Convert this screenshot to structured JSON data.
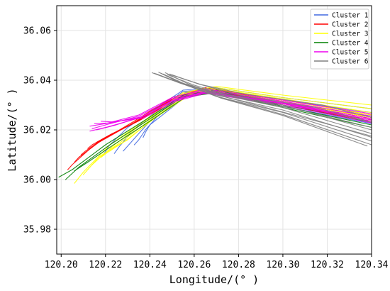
{
  "chart_data": {
    "type": "line",
    "title": "",
    "xlabel": "Longitude/(° )",
    "ylabel": "Latitude/(° )",
    "xlim": [
      120.198,
      120.34
    ],
    "ylim": [
      35.97,
      36.07
    ],
    "x_ticks": [
      "120.20",
      "120.22",
      "120.24",
      "120.26",
      "120.28",
      "120.30",
      "120.32",
      "120.34"
    ],
    "x_tick_values": [
      120.2,
      120.22,
      120.24,
      120.26,
      120.28,
      120.3,
      120.32,
      120.34
    ],
    "y_ticks": [
      "35.98",
      "36.00",
      "36.02",
      "36.04",
      "36.06"
    ],
    "y_tick_values": [
      35.98,
      36.0,
      36.02,
      36.04,
      36.06
    ],
    "grid": true,
    "legend_position": "top-right",
    "series": [
      {
        "name": "Cluster 1",
        "color": "#4169e1",
        "paths": [
          [
            [
              120.34,
              36.0285
            ],
            [
              120.3,
              36.033
            ],
            [
              120.27,
              36.037
            ],
            [
              120.255,
              36.036
            ],
            [
              120.24,
              36.027
            ],
            [
              120.23,
              36.021
            ],
            [
              120.222,
              36.014
            ],
            [
              120.219,
              36.01
            ]
          ],
          [
            [
              120.34,
              36.027
            ],
            [
              120.3,
              36.032
            ],
            [
              120.27,
              36.0365
            ],
            [
              120.255,
              36.0355
            ],
            [
              120.241,
              36.0262
            ],
            [
              120.232,
              36.0195
            ],
            [
              120.226,
              36.013
            ],
            [
              120.224,
              36.0105
            ]
          ],
          [
            [
              120.34,
              36.0255
            ],
            [
              120.3,
              36.031
            ],
            [
              120.27,
              36.036
            ],
            [
              120.256,
              36.035
            ],
            [
              120.242,
              36.0255
            ],
            [
              120.235,
              36.0185
            ],
            [
              120.23,
              36.0135
            ],
            [
              120.228,
              36.0115
            ]
          ],
          [
            [
              120.34,
              36.024
            ],
            [
              120.3,
              36.03
            ],
            [
              120.27,
              36.0355
            ],
            [
              120.256,
              36.0345
            ],
            [
              120.243,
              36.025
            ],
            [
              120.238,
              36.02
            ],
            [
              120.235,
              36.016
            ],
            [
              120.233,
              36.014
            ]
          ],
          [
            [
              120.34,
              36.0225
            ],
            [
              120.3,
              36.0295
            ],
            [
              120.27,
              36.035
            ],
            [
              120.257,
              36.034
            ],
            [
              120.244,
              36.0248
            ],
            [
              120.24,
              36.022
            ],
            [
              120.238,
              36.019
            ],
            [
              120.237,
              36.017
            ]
          ]
        ]
      },
      {
        "name": "Cluster 2",
        "color": "#ff0000",
        "paths": [
          [
            [
              120.34,
              36.026
            ],
            [
              120.3,
              36.032
            ],
            [
              120.265,
              36.037
            ],
            [
              120.25,
              36.033
            ],
            [
              120.232,
              36.023
            ],
            [
              120.215,
              36.014
            ],
            [
              120.205,
              36.006
            ],
            [
              120.203,
              36.004
            ]
          ],
          [
            [
              120.34,
              36.025
            ],
            [
              120.3,
              36.0315
            ],
            [
              120.265,
              36.0365
            ],
            [
              120.25,
              36.0325
            ],
            [
              120.232,
              36.0225
            ],
            [
              120.217,
              36.015
            ],
            [
              120.208,
              36.009
            ],
            [
              120.206,
              36.007
            ]
          ],
          [
            [
              120.34,
              36.0245
            ],
            [
              120.3,
              36.031
            ],
            [
              120.265,
              36.036
            ],
            [
              120.25,
              36.0322
            ],
            [
              120.233,
              36.0228
            ],
            [
              120.219,
              36.0165
            ],
            [
              120.211,
              36.0115
            ],
            [
              120.209,
              36.01
            ]
          ],
          [
            [
              120.34,
              36.024
            ],
            [
              120.3,
              36.0305
            ],
            [
              120.265,
              36.0355
            ],
            [
              120.251,
              36.032
            ],
            [
              120.234,
              36.0232
            ],
            [
              120.221,
              36.0175
            ],
            [
              120.214,
              36.014
            ],
            [
              120.212,
              36.0125
            ]
          ],
          [
            [
              120.34,
              36.0235
            ],
            [
              120.3,
              36.03
            ],
            [
              120.265,
              36.0352
            ],
            [
              120.251,
              36.0318
            ],
            [
              120.235,
              36.0236
            ],
            [
              120.223,
              36.0185
            ],
            [
              120.218,
              36.016
            ],
            [
              120.216,
              36.015
            ]
          ]
        ]
      },
      {
        "name": "Cluster 3",
        "color": "#ffff00",
        "paths": [
          [
            [
              120.34,
              36.03
            ],
            [
              120.3,
              36.034
            ],
            [
              120.27,
              36.0375
            ],
            [
              120.255,
              36.035
            ],
            [
              120.238,
              36.024
            ],
            [
              120.222,
              36.014
            ],
            [
              120.21,
              36.003
            ],
            [
              120.206,
              35.9985
            ]
          ],
          [
            [
              120.34,
              36.0285
            ],
            [
              120.3,
              36.033
            ],
            [
              120.27,
              36.037
            ],
            [
              120.255,
              36.0345
            ],
            [
              120.238,
              36.0235
            ],
            [
              120.224,
              36.014
            ],
            [
              120.214,
              36.006
            ],
            [
              120.21,
              36.002
            ]
          ],
          [
            [
              120.34,
              36.027
            ],
            [
              120.3,
              36.0325
            ],
            [
              120.27,
              36.0365
            ],
            [
              120.256,
              36.0342
            ],
            [
              120.239,
              36.0232
            ],
            [
              120.226,
              36.0145
            ],
            [
              120.217,
              36.009
            ],
            [
              120.214,
              36.006
            ]
          ],
          [
            [
              120.34,
              36.026
            ],
            [
              120.3,
              36.032
            ],
            [
              120.27,
              36.036
            ],
            [
              120.256,
              36.0338
            ],
            [
              120.24,
              36.0232
            ],
            [
              120.228,
              36.015
            ],
            [
              120.221,
              36.011
            ],
            [
              120.218,
              36.009
            ]
          ],
          [
            [
              120.34,
              36.025
            ],
            [
              120.3,
              36.0315
            ],
            [
              120.27,
              36.0355
            ],
            [
              120.257,
              36.0335
            ],
            [
              120.24,
              36.0234
            ],
            [
              120.23,
              36.016
            ],
            [
              120.224,
              36.013
            ],
            [
              120.222,
              36.0115
            ]
          ]
        ]
      },
      {
        "name": "Cluster 4",
        "color": "#008000",
        "paths": [
          [
            [
              120.34,
              36.023
            ],
            [
              120.3,
              36.03
            ],
            [
              120.27,
              36.036
            ],
            [
              120.255,
              36.034
            ],
            [
              120.238,
              36.024
            ],
            [
              120.22,
              36.014
            ],
            [
              120.205,
              36.004
            ],
            [
              120.199,
              36.001
            ]
          ],
          [
            [
              120.34,
              36.022
            ],
            [
              120.3,
              36.0295
            ],
            [
              120.27,
              36.0355
            ],
            [
              120.255,
              36.0335
            ],
            [
              120.239,
              36.0238
            ],
            [
              120.222,
              36.014
            ],
            [
              120.208,
              36.005
            ],
            [
              120.202,
              36.0
            ]
          ],
          [
            [
              120.34,
              36.021
            ],
            [
              120.3,
              36.029
            ],
            [
              120.27,
              36.035
            ],
            [
              120.256,
              36.0332
            ],
            [
              120.24,
              36.0235
            ],
            [
              120.224,
              36.0142
            ],
            [
              120.212,
              36.007
            ],
            [
              120.206,
              36.0035
            ]
          ]
        ]
      },
      {
        "name": "Cluster 5",
        "color": "#ee00ee",
        "paths": [
          [
            [
              120.34,
              36.0265
            ],
            [
              120.3,
              36.032
            ],
            [
              120.265,
              36.0365
            ],
            [
              120.25,
              36.033
            ],
            [
              120.235,
              36.026
            ],
            [
              120.22,
              36.0225
            ],
            [
              120.213,
              36.0215
            ]
          ],
          [
            [
              120.34,
              36.0255
            ],
            [
              120.3,
              36.0315
            ],
            [
              120.265,
              36.036
            ],
            [
              120.25,
              36.0325
            ],
            [
              120.235,
              36.0255
            ],
            [
              120.22,
              36.022
            ],
            [
              120.214,
              36.0205
            ]
          ],
          [
            [
              120.34,
              36.0245
            ],
            [
              120.3,
              36.031
            ],
            [
              120.265,
              36.0355
            ],
            [
              120.251,
              36.0322
            ],
            [
              120.236,
              36.0252
            ],
            [
              120.222,
              36.0228
            ],
            [
              120.215,
              36.0225
            ]
          ],
          [
            [
              120.34,
              36.0235
            ],
            [
              120.3,
              36.0305
            ],
            [
              120.265,
              36.035
            ],
            [
              120.251,
              36.0318
            ],
            [
              120.236,
              36.025
            ],
            [
              120.221,
              36.0212
            ],
            [
              120.213,
              36.0195
            ]
          ],
          [
            [
              120.34,
              36.0228
            ],
            [
              120.3,
              36.03
            ],
            [
              120.265,
              36.0347
            ],
            [
              120.252,
              36.0316
            ],
            [
              120.237,
              36.0248
            ],
            [
              120.223,
              36.0232
            ],
            [
              120.218,
              36.0235
            ]
          ],
          [
            [
              120.34,
              36.024
            ],
            [
              120.3,
              36.0308
            ],
            [
              120.265,
              36.0352
            ],
            [
              120.251,
              36.032
            ],
            [
              120.237,
              36.0255
            ],
            [
              120.224,
              36.0218
            ],
            [
              120.216,
              36.02
            ]
          ]
        ]
      },
      {
        "name": "Cluster 6",
        "color": "#808080",
        "paths": [
          [
            [
              120.241,
              36.043
            ],
            [
              120.25,
              36.04
            ],
            [
              120.27,
              36.035
            ],
            [
              120.3,
              36.03
            ],
            [
              120.34,
              36.02
            ]
          ],
          [
            [
              120.242,
              36.0428
            ],
            [
              120.252,
              36.0395
            ],
            [
              120.27,
              36.0345
            ],
            [
              120.3,
              36.029
            ],
            [
              120.34,
              36.0185
            ]
          ],
          [
            [
              120.243,
              36.0425
            ],
            [
              120.253,
              36.039
            ],
            [
              120.27,
              36.034
            ],
            [
              120.3,
              36.028
            ],
            [
              120.34,
              36.017
            ]
          ],
          [
            [
              120.244,
              36.0432
            ],
            [
              120.254,
              36.0388
            ],
            [
              120.27,
              36.0335
            ],
            [
              120.3,
              36.027
            ],
            [
              120.34,
              36.0155
            ]
          ],
          [
            [
              120.245,
              36.0428
            ],
            [
              120.255,
              36.0385
            ],
            [
              120.272,
              36.033
            ],
            [
              120.3,
              36.0262
            ],
            [
              120.34,
              36.014
            ]
          ],
          [
            [
              120.246,
              36.0425
            ],
            [
              120.256,
              36.0384
            ],
            [
              120.272,
              36.0328
            ],
            [
              120.3,
              36.0258
            ],
            [
              120.338,
              36.0135
            ]
          ],
          [
            [
              120.247,
              36.043
            ],
            [
              120.258,
              36.0382
            ],
            [
              120.275,
              36.033
            ],
            [
              120.305,
              36.026
            ],
            [
              120.34,
              36.0175
            ]
          ],
          [
            [
              120.248,
              36.0422
            ],
            [
              120.26,
              36.038
            ],
            [
              120.278,
              36.0335
            ],
            [
              120.31,
              36.0275
            ],
            [
              120.34,
              36.021
            ]
          ],
          [
            [
              120.249,
              36.0425
            ],
            [
              120.262,
              36.0385
            ],
            [
              120.28,
              36.034
            ],
            [
              120.315,
              36.029
            ],
            [
              120.34,
              36.023
            ]
          ],
          [
            [
              120.25,
              36.042
            ],
            [
              120.263,
              36.0383
            ],
            [
              120.282,
              36.0345
            ],
            [
              120.318,
              36.03
            ],
            [
              120.34,
              36.025
            ]
          ]
        ]
      }
    ]
  }
}
